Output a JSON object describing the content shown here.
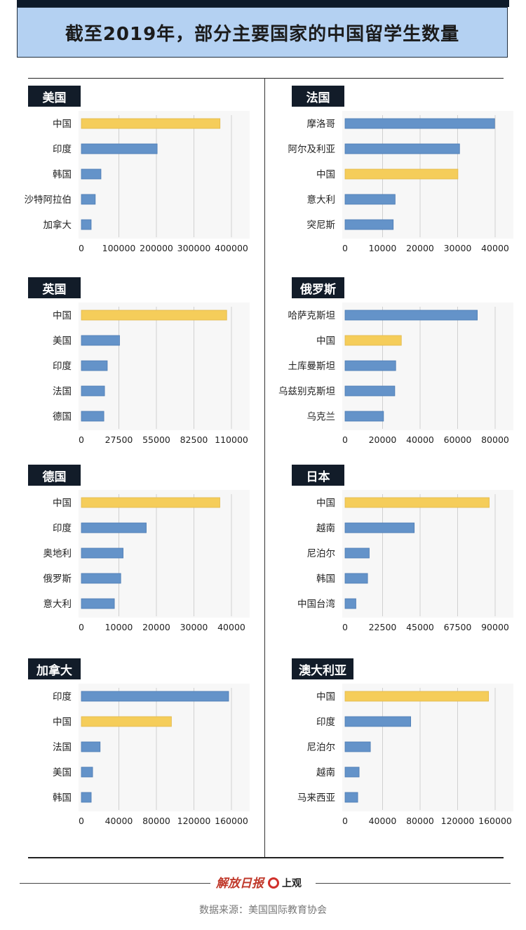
{
  "header": {
    "title": "截至2019年，部分主要国家的中国留学生数量"
  },
  "colors": {
    "highlight": "#f5cd5a",
    "bar": "#6493c9",
    "gridline": "#d0d0d0",
    "tag_bg": "#121c29",
    "title_bg": "#b4d1f2"
  },
  "footer": {
    "logo1": "解放日报",
    "logo2": "上观",
    "source": "数据来源：美国国际教育协会"
  },
  "chart_data": [
    {
      "type": "bar",
      "orientation": "horizontal",
      "title": "美国",
      "categories": [
        "中国",
        "印度",
        "韩国",
        "沙特阿拉伯",
        "加拿大"
      ],
      "values": [
        369548,
        202014,
        52250,
        37080,
        26122
      ],
      "highlight": [
        "中国"
      ],
      "ticks": [
        "0",
        "100000",
        "200000",
        "300000",
        "400000"
      ],
      "xlim": [
        0,
        400000
      ]
    },
    {
      "type": "bar",
      "orientation": "horizontal",
      "title": "法国",
      "categories": [
        "摩洛哥",
        "阿尔及利亚",
        "中国",
        "意大利",
        "突尼斯"
      ],
      "values": [
        39855,
        30521,
        30071,
        13341,
        12842
      ],
      "highlight": [
        "中国"
      ],
      "ticks": [
        "0",
        "10000",
        "20000",
        "30000",
        "40000"
      ],
      "xlim": [
        0,
        40000
      ]
    },
    {
      "type": "bar",
      "orientation": "horizontal",
      "title": "英国",
      "categories": [
        "中国",
        "美国",
        "印度",
        "法国",
        "德国"
      ],
      "values": [
        106530,
        28000,
        19000,
        17000,
        16500
      ],
      "highlight": [
        "中国"
      ],
      "ticks": [
        "0",
        "27500",
        "55000",
        "82500",
        "110000"
      ],
      "xlim": [
        0,
        110000
      ]
    },
    {
      "type": "bar",
      "orientation": "horizontal",
      "title": "俄罗斯",
      "categories": [
        "哈萨克斯坦",
        "中国",
        "土库曼斯坦",
        "乌兹别克斯坦",
        "乌克兰"
      ],
      "values": [
        70500,
        30000,
        27000,
        26500,
        20500
      ],
      "highlight": [
        "中国"
      ],
      "ticks": [
        "0",
        "20000",
        "40000",
        "60000",
        "80000"
      ],
      "xlim": [
        0,
        80000
      ]
    },
    {
      "type": "bar",
      "orientation": "horizontal",
      "title": "德国",
      "categories": [
        "中国",
        "印度",
        "奥地利",
        "俄罗斯",
        "意大利"
      ],
      "values": [
        36915,
        17294,
        11130,
        10500,
        8800
      ],
      "highlight": [
        "中国"
      ],
      "ticks": [
        "0",
        "10000",
        "20000",
        "30000",
        "40000"
      ],
      "xlim": [
        0,
        40000
      ]
    },
    {
      "type": "bar",
      "orientation": "horizontal",
      "title": "日本",
      "categories": [
        "中国",
        "越南",
        "尼泊尔",
        "韩国",
        "中国台湾"
      ],
      "values": [
        86439,
        41500,
        14500,
        13500,
        6500
      ],
      "highlight": [
        "中国"
      ],
      "ticks": [
        "0",
        "22500",
        "45000",
        "67500",
        "90000"
      ],
      "xlim": [
        0,
        90000
      ]
    },
    {
      "type": "bar",
      "orientation": "horizontal",
      "title": "加拿大",
      "categories": [
        "印度",
        "中国",
        "法国",
        "美国",
        "韩国"
      ],
      "values": [
        157000,
        96000,
        20000,
        12000,
        10500
      ],
      "highlight": [
        "中国"
      ],
      "ticks": [
        "0",
        "40000",
        "80000",
        "120000",
        "160000"
      ],
      "xlim": [
        0,
        160000
      ]
    },
    {
      "type": "bar",
      "orientation": "horizontal",
      "title": "澳大利亚",
      "categories": [
        "中国",
        "印度",
        "尼泊尔",
        "越南",
        "马来西亚"
      ],
      "values": [
        153000,
        70000,
        27000,
        15000,
        13500
      ],
      "highlight": [
        "中国"
      ],
      "ticks": [
        "0",
        "40000",
        "80000",
        "120000",
        "160000"
      ],
      "xlim": [
        0,
        160000
      ]
    }
  ]
}
